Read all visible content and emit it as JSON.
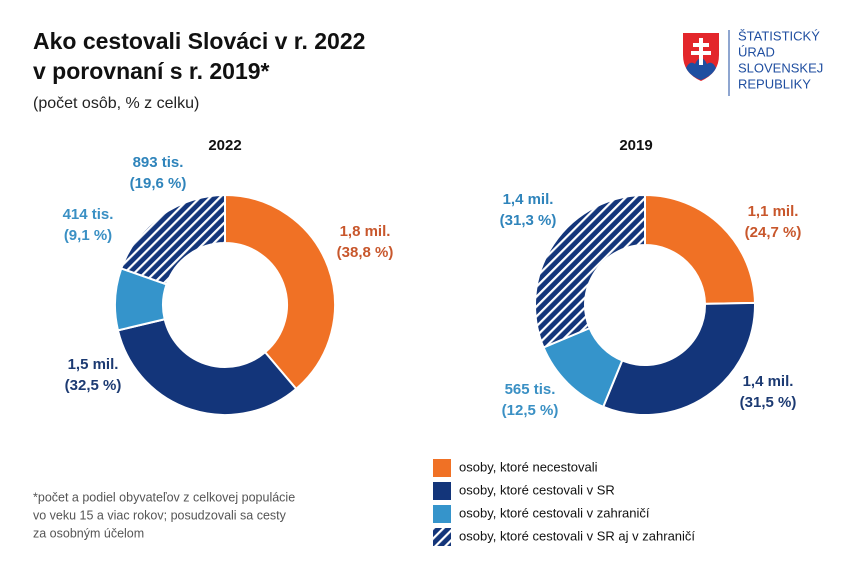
{
  "header": {
    "title_lines": [
      "Ako cestovali Slováci v r. 2022",
      "v porovnaní s r. 2019*"
    ],
    "subtitle": "(počet osôb, % z celku)",
    "logo_lines": [
      "ŠTATISTICKÝ",
      "ÚRAD",
      "SLOVENSKEJ",
      "REPUBLIKY"
    ]
  },
  "chart_data": [
    {
      "type": "pie",
      "title": "2022",
      "categories": [
        "osoby, ktoré necestovali",
        "osoby, ktoré cestovali v SR",
        "osoby, ktoré cestovali v zahraničí",
        "osoby, ktoré cestovali v SR aj v zahraničí"
      ],
      "values": [
        38.8,
        32.5,
        9.1,
        19.6
      ],
      "value_labels": [
        "(38,8 %)",
        "(32,5 %)",
        "(9,1 %)",
        "(19,6 %)"
      ],
      "count_labels": [
        "1,8 mil.",
        "1,5 mil.",
        "414 tis.",
        "893 tis."
      ],
      "colors": [
        "#f07125",
        "#13357a",
        "#3594cb",
        "#13357a"
      ],
      "hatch": [
        false,
        false,
        false,
        true
      ],
      "label_colors": [
        "#c8572c",
        "#1c3a72",
        "#3a90c4",
        "#2f84bb"
      ]
    },
    {
      "type": "pie",
      "title": "2019",
      "categories": [
        "osoby, ktoré necestovali",
        "osoby, ktoré cestovali v SR",
        "osoby, ktoré cestovali v zahraničí",
        "osoby, ktoré cestovali v SR aj v zahraničí"
      ],
      "values": [
        24.7,
        31.5,
        12.5,
        31.3
      ],
      "value_labels": [
        "(24,7 %)",
        "(31,5 %)",
        "(12,5 %)",
        "(31,3 %)"
      ],
      "count_labels": [
        "1,1 mil.",
        "1,4 mil.",
        "565 tis.",
        "1,4 mil."
      ],
      "colors": [
        "#f07125",
        "#13357a",
        "#3594cb",
        "#13357a"
      ],
      "hatch": [
        false,
        false,
        false,
        true
      ],
      "label_colors": [
        "#c8572c",
        "#1c3a72",
        "#3a90c4",
        "#2f84bb"
      ]
    }
  ],
  "footnote_lines": [
    "*počet a podiel obyvateľov z celkovej populácie",
    "vo veku 15 a viac rokov; posudzovali sa cesty",
    "za osobným účelom"
  ]
}
